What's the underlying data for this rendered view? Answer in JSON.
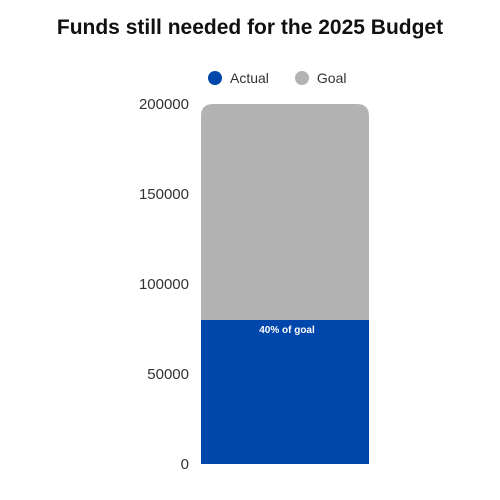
{
  "chart_data": {
    "type": "bar",
    "title": "Funds still needed for the 2025 Budget",
    "xlabel": "",
    "ylabel": "",
    "ylim": [
      0,
      200000
    ],
    "yticks": [
      0,
      50000,
      100000,
      150000,
      200000
    ],
    "ytick_labels": [
      "0",
      "50000",
      "100000",
      "150000",
      "200000"
    ],
    "grid": false,
    "legend_placement": "top",
    "series": [
      {
        "name": "Actual",
        "values": [
          80000
        ],
        "color": "#0047ab"
      },
      {
        "name": "Goal",
        "values": [
          200000
        ],
        "color": "#b3b3b3"
      }
    ],
    "annotation": "40% of goal"
  }
}
